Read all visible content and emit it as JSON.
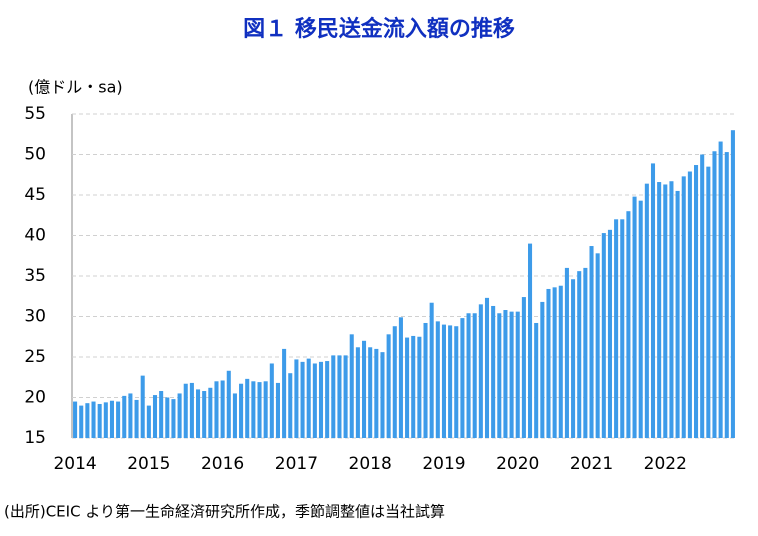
{
  "chart_data": {
    "type": "bar",
    "title": "図１ 移民送金流入額の推移",
    "y_axis_label": "(億ドル・sa)",
    "source_note": "(出所)CEIC より第一生命経済研究所作成，季節調整値は当社試算",
    "color": "#3d9be9",
    "grid": true,
    "ylim": [
      15,
      55
    ],
    "yticks": [
      15,
      20,
      25,
      30,
      35,
      40,
      45,
      50,
      55
    ],
    "categories": [
      "2014",
      null,
      null,
      null,
      null,
      null,
      null,
      null,
      null,
      null,
      null,
      null,
      "2015",
      null,
      null,
      null,
      null,
      null,
      null,
      null,
      null,
      null,
      null,
      null,
      "2016",
      null,
      null,
      null,
      null,
      null,
      null,
      null,
      null,
      null,
      null,
      null,
      "2017",
      null,
      null,
      null,
      null,
      null,
      null,
      null,
      null,
      null,
      null,
      null,
      "2018",
      null,
      null,
      null,
      null,
      null,
      null,
      null,
      null,
      null,
      null,
      null,
      "2019",
      null,
      null,
      null,
      null,
      null,
      null,
      null,
      null,
      null,
      null,
      null,
      "2020",
      null,
      null,
      null,
      null,
      null,
      null,
      null,
      null,
      null,
      null,
      null,
      "2021",
      null,
      null,
      null,
      null,
      null,
      null,
      null,
      null,
      null,
      null,
      null,
      "2022",
      null,
      null,
      null,
      null,
      null,
      null,
      null,
      null,
      null,
      null,
      null
    ],
    "values": [
      19.5,
      19.0,
      19.3,
      19.5,
      19.2,
      19.4,
      19.6,
      19.5,
      20.2,
      20.5,
      19.7,
      22.7,
      19.0,
      20.3,
      20.8,
      20.0,
      19.8,
      20.5,
      21.7,
      21.8,
      21.0,
      20.8,
      21.2,
      22.0,
      22.1,
      23.3,
      20.5,
      21.7,
      22.3,
      22.0,
      21.9,
      22.0,
      24.2,
      21.8,
      26.0,
      23.0,
      24.7,
      24.4,
      24.8,
      24.2,
      24.4,
      24.5,
      25.2,
      25.2,
      25.2,
      27.8,
      26.2,
      27.0,
      26.2,
      26.0,
      25.6,
      27.8,
      28.8,
      29.9,
      27.4,
      27.6,
      27.5,
      29.2,
      31.7,
      29.4,
      29.0,
      28.9,
      28.8,
      29.8,
      30.4,
      30.4,
      31.5,
      32.3,
      31.3,
      30.4,
      30.8,
      30.6,
      30.6,
      32.4,
      39.0,
      29.2,
      31.8,
      33.4,
      33.6,
      33.8,
      36.0,
      34.6,
      35.6,
      36.0,
      38.7,
      37.8,
      40.3,
      40.7,
      42.0,
      42.0,
      43.0,
      44.8,
      44.3,
      46.4,
      48.9,
      46.6,
      46.3,
      46.7,
      45.5,
      47.3,
      47.9,
      48.7,
      50.0,
      48.5,
      50.4,
      51.6,
      50.3,
      53.0
    ]
  }
}
